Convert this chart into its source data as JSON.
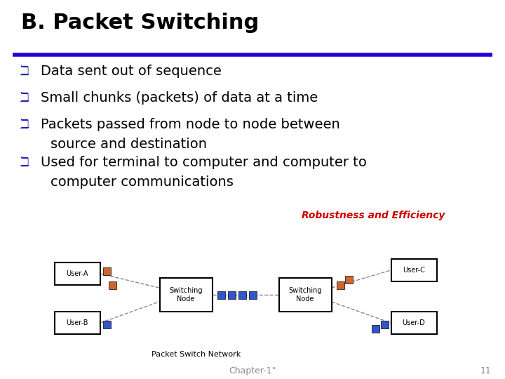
{
  "title": "B. Packet Switching",
  "title_color": "#000000",
  "title_fontsize": 22,
  "underline_color": "#2200DD",
  "bullet_color": "#2222BB",
  "bullet_char": "ℶ",
  "bullet_fontsize": 14,
  "body_fontsize": 14,
  "body_color": "#000000",
  "robustness_text": "Robustness and Efficiency",
  "robustness_color": "#CC0000",
  "robustness_fontsize": 10,
  "footer_text": "Chapter-1\"",
  "footer_page": "11",
  "footer_fontsize": 9,
  "footer_color": "#888888",
  "background_color": "#FFFFFF",
  "network_label": "Packet Switch Network",
  "packet_blue": "#3355CC",
  "packet_orange": "#CC6633"
}
